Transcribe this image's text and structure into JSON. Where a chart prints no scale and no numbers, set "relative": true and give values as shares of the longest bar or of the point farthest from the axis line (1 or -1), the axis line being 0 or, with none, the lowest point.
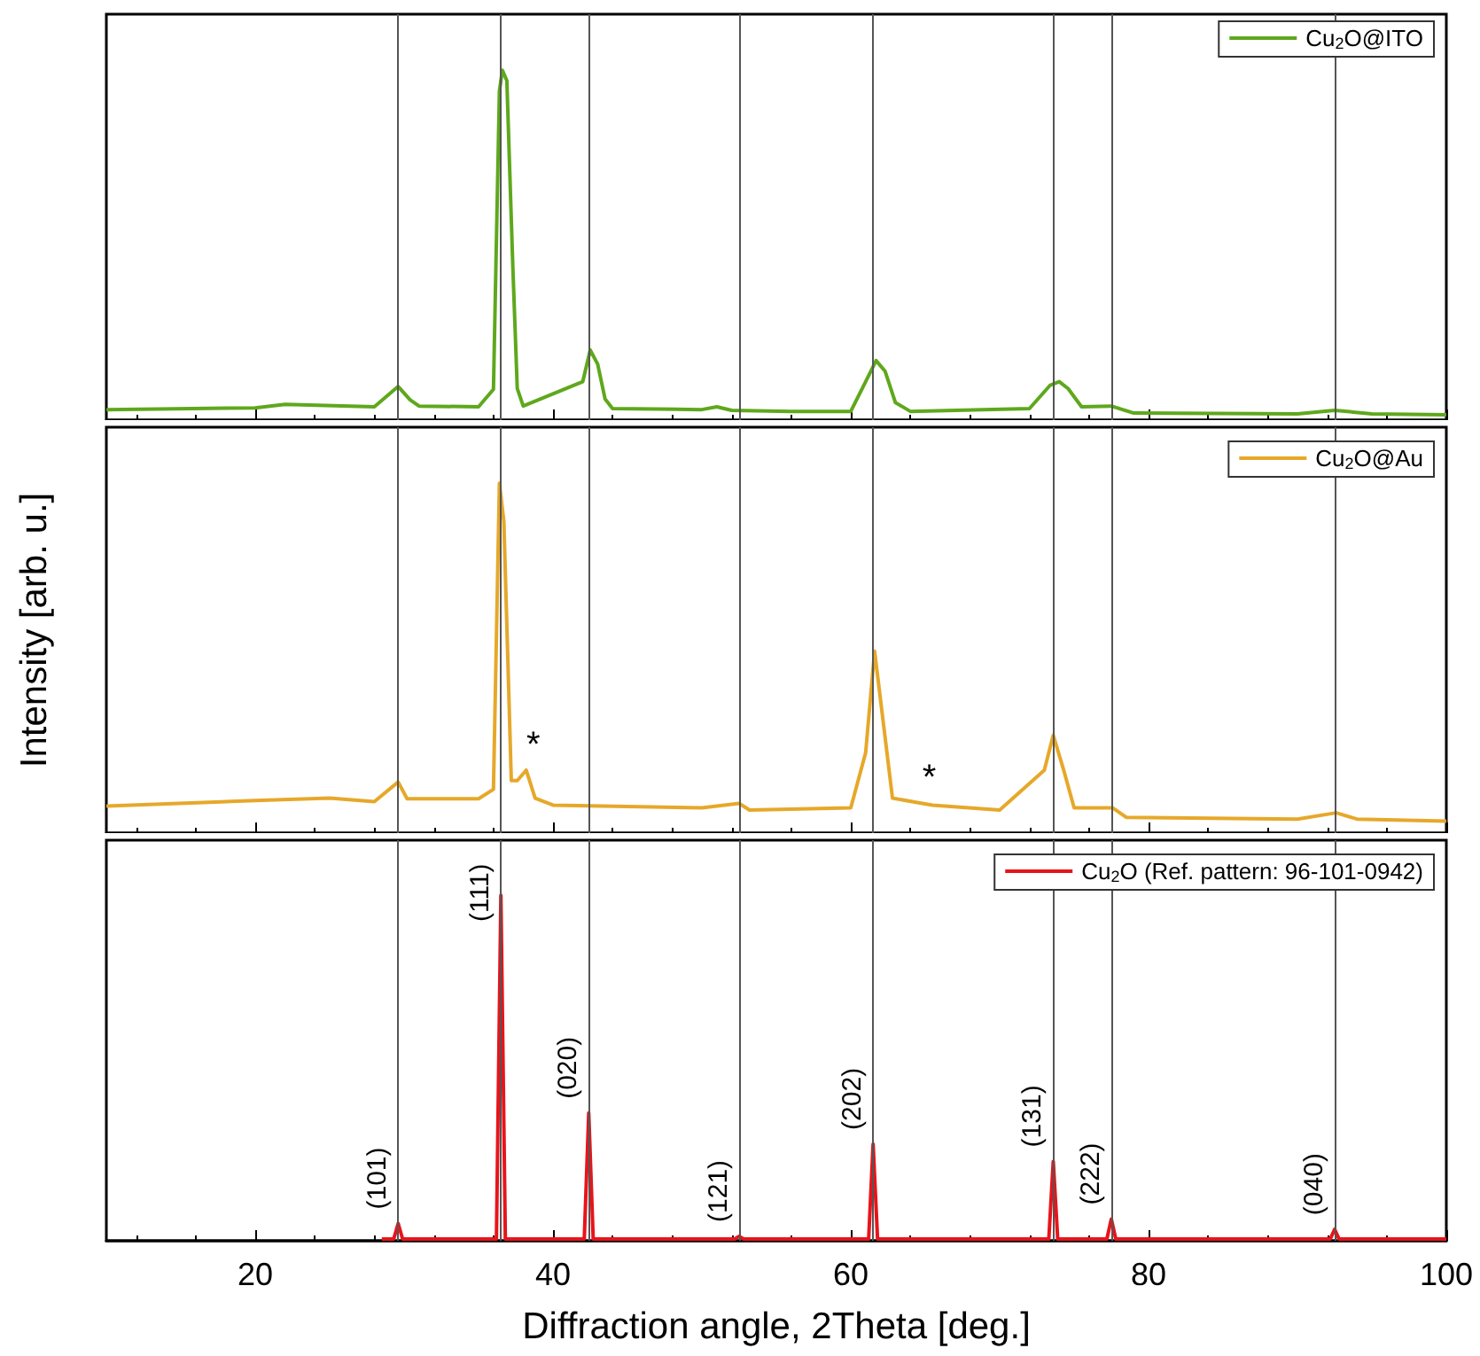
{
  "chart_data": [
    {
      "type": "line",
      "relative": true,
      "xlim": [
        10,
        100
      ],
      "xticks": [
        20,
        40,
        60,
        80,
        100
      ],
      "tick_labels": false,
      "legend": "top right",
      "marker": "none",
      "series": [
        {
          "name": "Cu$_{2}$O@ITO",
          "color": "#5ea81c",
          "x": [
            10,
            20,
            22,
            28,
            29.6,
            30.4,
            31,
            35,
            36,
            36.4,
            36.6,
            36.9,
            37.3,
            37.6,
            38,
            42,
            42.5,
            43,
            43.5,
            44,
            50,
            51,
            52,
            56,
            60,
            61,
            61.7,
            62.3,
            63,
            64,
            72,
            73.4,
            74,
            74.6,
            75.5,
            77.5,
            79,
            90,
            92.5,
            95,
            100
          ],
          "values": [
            0.03,
            0.035,
            0.045,
            0.038,
            0.096,
            0.058,
            0.04,
            0.038,
            0.088,
            0.94,
            1,
            0.97,
            0.44,
            0.09,
            0.04,
            0.11,
            0.2,
            0.16,
            0.06,
            0.033,
            0.03,
            0.038,
            0.028,
            0.025,
            0.025,
            0.11,
            0.17,
            0.14,
            0.05,
            0.025,
            0.033,
            0.1,
            0.11,
            0.09,
            0.038,
            0.04,
            0.02,
            0.018,
            0.028,
            0.018,
            0.015
          ]
        }
      ],
      "ref_lines": [
        {
          "axis": "x",
          "value": 29.6,
          "color": "#555555"
        },
        {
          "axis": "x",
          "value": 36.5,
          "color": "#555555"
        },
        {
          "axis": "x",
          "value": 42.4,
          "color": "#555555"
        },
        {
          "axis": "x",
          "value": 52.5,
          "color": "#555555"
        },
        {
          "axis": "x",
          "value": 61.5,
          "color": "#555555"
        },
        {
          "axis": "x",
          "value": 73.6,
          "color": "#555555"
        },
        {
          "axis": "x",
          "value": 77.5,
          "color": "#555555"
        },
        {
          "axis": "x",
          "value": 92.5,
          "color": "#555555"
        }
      ]
    },
    {
      "type": "line",
      "relative": true,
      "xlim": [
        10,
        100
      ],
      "xticks": [
        20,
        40,
        60,
        80,
        100
      ],
      "tick_labels": false,
      "legend": "top right",
      "marker": "none",
      "ylabel": "Intensity [arb. u.]",
      "series": [
        {
          "name": "Cu$_{2}$O@Au",
          "color": "#e6a82a",
          "x": [
            10,
            20,
            25,
            28,
            29.6,
            30.2,
            35,
            36,
            36.4,
            36.7,
            37.2,
            37.6,
            38.2,
            38.8,
            40,
            50,
            52.5,
            53.2,
            60,
            61,
            61.6,
            62.2,
            62.8,
            64.8,
            65.5,
            70,
            73,
            73.6,
            74.3,
            75,
            77.6,
            78.5,
            90,
            92.6,
            94,
            100
          ],
          "values": [
            0.077,
            0.093,
            0.1,
            0.09,
            0.146,
            0.098,
            0.098,
            0.125,
            1,
            0.89,
            0.15,
            0.15,
            0.18,
            0.1,
            0.08,
            0.072,
            0.085,
            0.066,
            0.072,
            0.23,
            0.52,
            0.31,
            0.1,
            0.085,
            0.08,
            0.066,
            0.18,
            0.28,
            0.18,
            0.072,
            0.072,
            0.045,
            0.04,
            0.058,
            0.04,
            0.034
          ]
        }
      ],
      "annotations": [
        {
          "text": "*",
          "x": 38.2,
          "y": 0.18
        },
        {
          "text": "*",
          "x": 64.8,
          "y": 0.085
        }
      ],
      "ref_lines": [
        {
          "axis": "x",
          "value": 29.6,
          "color": "#555555"
        },
        {
          "axis": "x",
          "value": 36.5,
          "color": "#555555"
        },
        {
          "axis": "x",
          "value": 42.4,
          "color": "#555555"
        },
        {
          "axis": "x",
          "value": 52.5,
          "color": "#555555"
        },
        {
          "axis": "x",
          "value": 61.5,
          "color": "#555555"
        },
        {
          "axis": "x",
          "value": 73.6,
          "color": "#555555"
        },
        {
          "axis": "x",
          "value": 77.5,
          "color": "#555555"
        },
        {
          "axis": "x",
          "value": 92.5,
          "color": "#555555"
        }
      ]
    },
    {
      "type": "line",
      "relative": true,
      "xlim": [
        10,
        100
      ],
      "xticks": [
        20,
        40,
        60,
        80,
        100
      ],
      "tick_labels": "x",
      "legend": "top right",
      "marker": "none",
      "xlabel": "Diffraction angle, 2Theta [deg.]",
      "series": [
        {
          "name": "Cu$_{2}$O (Ref. pattern: 96-101-0942)",
          "color": "#e8141b",
          "x": [
            28.5,
            29.3,
            29.6,
            29.9,
            36.2,
            36.5,
            36.8,
            42.1,
            42.4,
            42.7,
            52.2,
            52.5,
            52.8,
            61.2,
            61.5,
            61.8,
            73.3,
            73.6,
            73.9,
            77.2,
            77.5,
            77.8,
            92.2,
            92.5,
            92.8,
            100
          ],
          "values": [
            0.005,
            0.005,
            0.05,
            0.005,
            0.005,
            1,
            0.005,
            0.005,
            0.37,
            0.005,
            0.005,
            0.013,
            0.005,
            0.005,
            0.28,
            0.005,
            0.005,
            0.23,
            0.005,
            0.005,
            0.063,
            0.005,
            0.005,
            0.033,
            0.005,
            0.005
          ]
        }
      ],
      "annotations": [
        {
          "text": "(101)",
          "x": 29.6,
          "y": 0.05
        },
        {
          "text": "(111)",
          "x": 36.5,
          "y": 1
        },
        {
          "text": "(020)",
          "x": 42.4,
          "y": 0.37
        },
        {
          "text": "(121)",
          "x": 52.5,
          "y": 0.013
        },
        {
          "text": "(202)",
          "x": 61.5,
          "y": 0.28
        },
        {
          "text": "(131)",
          "x": 73.6,
          "y": 0.23
        },
        {
          "text": "(222)",
          "x": 77.5,
          "y": 0.063
        },
        {
          "text": "(040)",
          "x": 92.5,
          "y": 0.033
        }
      ],
      "ref_lines": [
        {
          "axis": "x",
          "value": 29.6,
          "color": "#555555"
        },
        {
          "axis": "x",
          "value": 36.5,
          "color": "#555555"
        },
        {
          "axis": "x",
          "value": 42.4,
          "color": "#555555"
        },
        {
          "axis": "x",
          "value": 52.5,
          "color": "#555555"
        },
        {
          "axis": "x",
          "value": 61.5,
          "color": "#555555"
        },
        {
          "axis": "x",
          "value": 73.6,
          "color": "#555555"
        },
        {
          "axis": "x",
          "value": 77.5,
          "color": "#555555"
        },
        {
          "axis": "x",
          "value": 92.5,
          "color": "#555555"
        }
      ]
    }
  ]
}
